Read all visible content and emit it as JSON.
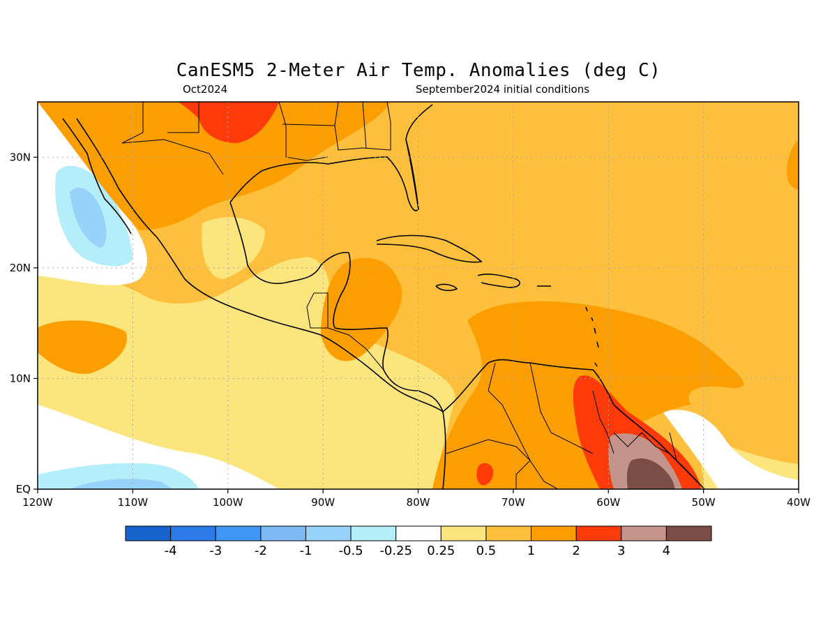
{
  "title": "CanESM5 2-Meter Air Temp. Anomalies (deg C)",
  "subtitle_left": "Oct2024",
  "subtitle_right": "September2024 initial conditions",
  "axes": {
    "lon_ticks": [
      "120W",
      "110W",
      "100W",
      "90W",
      "80W",
      "70W",
      "60W",
      "50W",
      "40W"
    ],
    "lat_ticks": [
      "30N",
      "20N",
      "10N",
      "EQ"
    ]
  },
  "colorbar": {
    "labels": [
      "-4",
      "-3",
      "-2",
      "-1",
      "-0.5",
      "-0.25",
      "0.25",
      "0.5",
      "1",
      "2",
      "3",
      "4"
    ],
    "colors": [
      "#1764cd",
      "#2b7ae8",
      "#3f96f5",
      "#7db9f5",
      "#97d2fa",
      "#b4eefa",
      "#ffffff",
      "#fde57e",
      "#fdbf3c",
      "#fc9e00",
      "#fc3a0a",
      "#c4948a",
      "#7a4e46"
    ]
  },
  "map": {
    "region": "Central America / Caribbean",
    "lon_range": [
      -120,
      -40
    ],
    "lat_range": [
      0,
      35
    ],
    "grid": "dotted"
  }
}
